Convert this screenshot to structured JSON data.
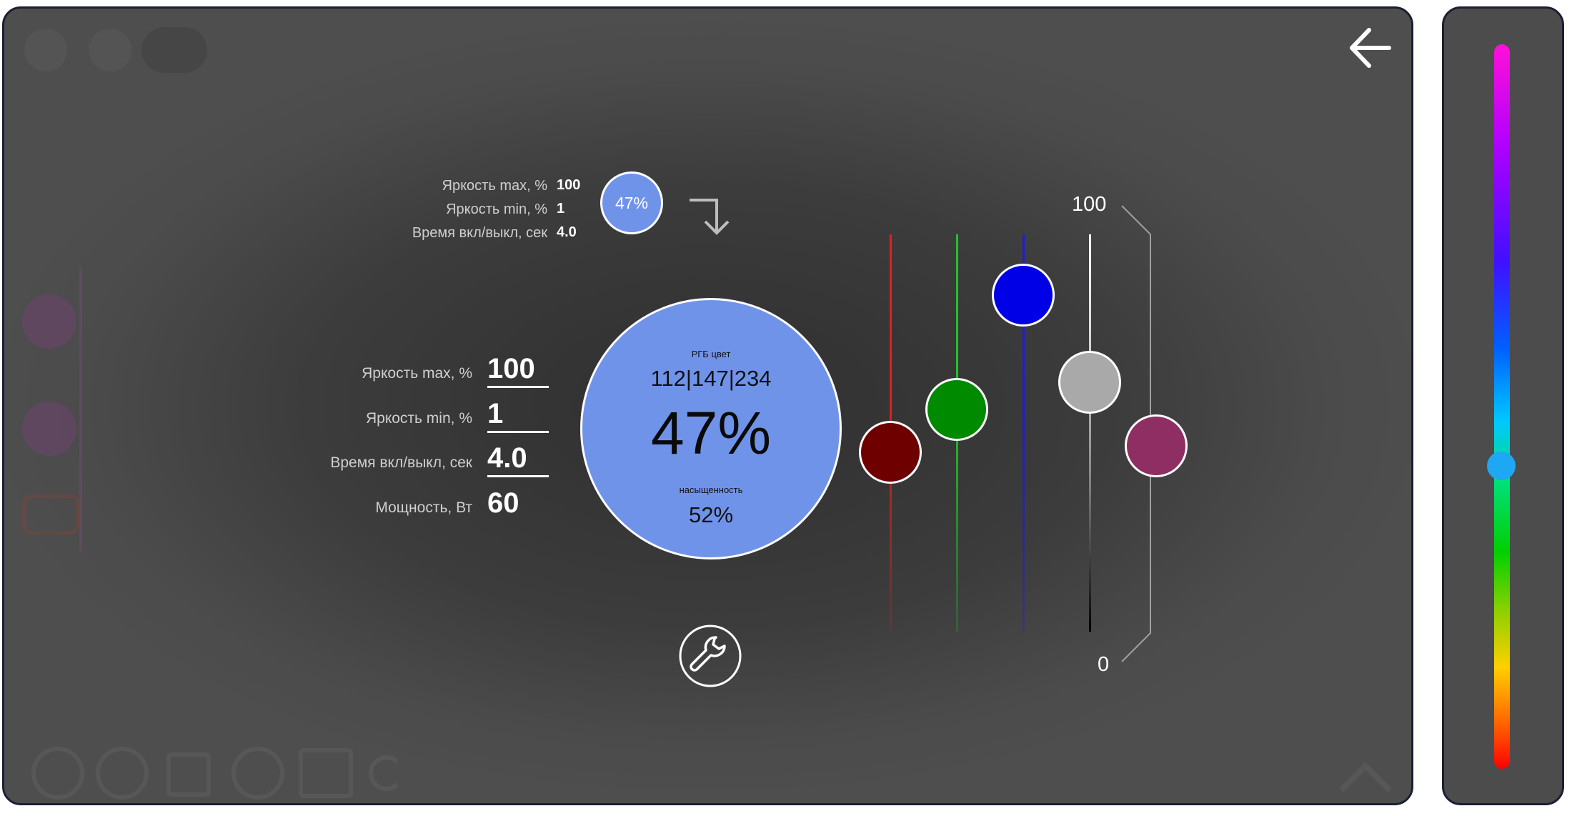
{
  "summary": {
    "brightness_max_label": "Яркость max, %",
    "brightness_max_value": "100",
    "brightness_min_label": "Яркость min, %",
    "brightness_min_value": "1",
    "fade_time_label": "Время вкл/выкл, сек",
    "fade_time_value": "4.0",
    "preview_percent": "47%"
  },
  "params": {
    "brightness_max_label": "Яркость max, %",
    "brightness_max_value": "100",
    "brightness_min_label": "Яркость min, %",
    "brightness_min_value": "1",
    "fade_time_label": "Время вкл/выкл, сек",
    "fade_time_value": "4.0",
    "power_label": "Мощность, Вт",
    "power_value": "60"
  },
  "color_circle": {
    "rgb_caption": "РГБ цвет",
    "rgb_value": "112|147|234",
    "percent": "47%",
    "saturation_caption": "насыщенность",
    "saturation_value": "52%",
    "fill_color": "#7093ea"
  },
  "sliders": {
    "scale_max": "100",
    "scale_min": "0",
    "channels": [
      {
        "name": "red",
        "level": 0.46,
        "color": "#6e0000",
        "track": "#e02020"
      },
      {
        "name": "green",
        "level": 0.56,
        "color": "#008a00",
        "track": "#22c22a"
      },
      {
        "name": "blue",
        "level": 0.85,
        "color": "#0000e6",
        "track": "#1f1fd0"
      },
      {
        "name": "white",
        "level": 0.62,
        "color": "#a9a9a9",
        "track": "#dddddd"
      },
      {
        "name": "saturation",
        "level": 0.52,
        "color": "#8e2e62",
        "track": "#9a9a9a"
      }
    ]
  },
  "hue_bar": {
    "position": 0.59,
    "knob_color": "#1ea7f2"
  },
  "icons": {
    "back": "arrow-left-icon",
    "settings": "wrench-icon",
    "apply": "arrow-down-return-icon"
  }
}
